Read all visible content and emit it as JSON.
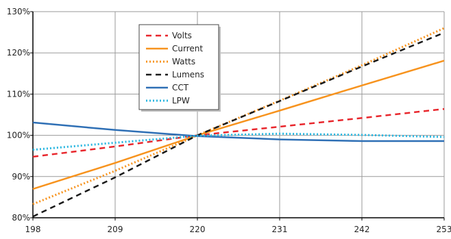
{
  "chart_data": {
    "type": "line",
    "title": "",
    "xlabel": "",
    "ylabel": "",
    "xlim": [
      198,
      253
    ],
    "ylim": [
      80,
      130
    ],
    "x_ticks": [
      198,
      209,
      220,
      231,
      242,
      253
    ],
    "y_ticks": [
      80,
      90,
      100,
      110,
      120,
      130
    ],
    "y_tick_labels": [
      "80%",
      "90%",
      "100%",
      "110%",
      "120%",
      "130%"
    ],
    "grid": true,
    "legend_placement": "top-center",
    "series": [
      {
        "name": "Volts",
        "color": "#e8262c",
        "dash": "dashed",
        "x": [
          198,
          209,
          220,
          231,
          242,
          253
        ],
        "y": [
          94.8,
          97.3,
          100,
          102.1,
          104.2,
          106.4
        ]
      },
      {
        "name": "Current",
        "color": "#f7931e",
        "dash": "solid",
        "x": [
          198,
          209,
          220,
          231,
          242,
          253
        ],
        "y": [
          87,
          93.3,
          100,
          106,
          112.1,
          118.1
        ]
      },
      {
        "name": "Watts",
        "color": "#f7931e",
        "dash": "dotted",
        "x": [
          198,
          209,
          220,
          231,
          242,
          253
        ],
        "y": [
          83.3,
          91.4,
          100,
          108.4,
          117,
          126
        ]
      },
      {
        "name": "Lumens",
        "color": "#1a1a1a",
        "dash": "dashed",
        "x": [
          198,
          209,
          220,
          231,
          242,
          253
        ],
        "y": [
          80.3,
          89.8,
          100,
          108.3,
          116.7,
          124.9
        ]
      },
      {
        "name": "CCT",
        "color": "#2e6fb5",
        "dash": "solid",
        "x": [
          198,
          209,
          220,
          231,
          242,
          253
        ],
        "y": [
          103.1,
          101.3,
          99.8,
          99,
          98.6,
          98.6
        ]
      },
      {
        "name": "LPW",
        "color": "#29b6e0",
        "dash": "dotted",
        "x": [
          198,
          209,
          220,
          231,
          242,
          253
        ],
        "y": [
          96.5,
          98.2,
          99.9,
          100.4,
          100.1,
          99.6
        ]
      }
    ]
  }
}
